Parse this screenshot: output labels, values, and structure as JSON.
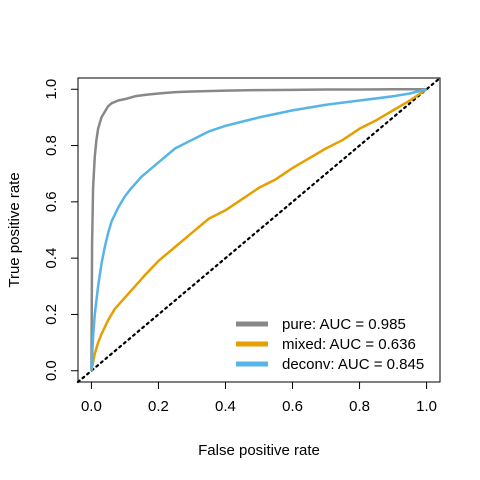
{
  "chart_data": {
    "type": "line",
    "title": "",
    "xlabel": "False positive rate",
    "ylabel": "True positive rate",
    "xlim": [
      -0.04,
      1.04
    ],
    "ylim": [
      -0.04,
      1.04
    ],
    "x_ticks": [
      0.0,
      0.2,
      0.4,
      0.6,
      0.8,
      1.0
    ],
    "x_tick_labels": [
      "0.0",
      "0.2",
      "0.4",
      "0.6",
      "0.8",
      "1.0"
    ],
    "y_ticks": [
      0.0,
      0.2,
      0.4,
      0.6,
      0.8,
      1.0
    ],
    "y_tick_labels": [
      "0.0",
      "0.2",
      "0.4",
      "0.6",
      "0.8",
      "1.0"
    ],
    "grid": false,
    "legend_position": "bottom-right",
    "reference_line": {
      "style": "dotted",
      "color": "#000000",
      "x": [
        0,
        1
      ],
      "y": [
        0,
        1
      ]
    },
    "series": [
      {
        "name": "pure: AUC = 0.985",
        "color": "#888888",
        "x": [
          0,
          0.002,
          0.005,
          0.01,
          0.015,
          0.02,
          0.03,
          0.04,
          0.05,
          0.06,
          0.08,
          0.1,
          0.13,
          0.16,
          0.2,
          0.25,
          0.3,
          0.4,
          0.5,
          0.6,
          0.7,
          0.8,
          0.9,
          1.0
        ],
        "y": [
          0,
          0.45,
          0.65,
          0.76,
          0.82,
          0.86,
          0.9,
          0.92,
          0.94,
          0.95,
          0.96,
          0.965,
          0.975,
          0.98,
          0.985,
          0.99,
          0.992,
          0.995,
          0.997,
          0.998,
          0.999,
          0.999,
          1.0,
          1.0
        ]
      },
      {
        "name": "mixed: AUC = 0.636",
        "color": "#E69F00",
        "x": [
          0,
          0.005,
          0.01,
          0.02,
          0.03,
          0.05,
          0.07,
          0.1,
          0.13,
          0.16,
          0.2,
          0.25,
          0.3,
          0.35,
          0.4,
          0.45,
          0.5,
          0.55,
          0.6,
          0.65,
          0.7,
          0.75,
          0.8,
          0.85,
          0.9,
          0.95,
          1.0
        ],
        "y": [
          0,
          0.03,
          0.06,
          0.1,
          0.13,
          0.18,
          0.22,
          0.26,
          0.3,
          0.34,
          0.39,
          0.44,
          0.49,
          0.54,
          0.57,
          0.61,
          0.65,
          0.68,
          0.72,
          0.755,
          0.79,
          0.82,
          0.86,
          0.89,
          0.925,
          0.96,
          1.0
        ]
      },
      {
        "name": "deconv: AUC = 0.845",
        "color": "#56B4E9",
        "x": [
          0,
          0.005,
          0.01,
          0.02,
          0.03,
          0.04,
          0.05,
          0.06,
          0.08,
          0.1,
          0.12,
          0.15,
          0.18,
          0.2,
          0.25,
          0.3,
          0.35,
          0.4,
          0.45,
          0.5,
          0.6,
          0.7,
          0.8,
          0.9,
          0.95,
          1.0
        ],
        "y": [
          0,
          0.12,
          0.2,
          0.3,
          0.38,
          0.44,
          0.49,
          0.53,
          0.58,
          0.62,
          0.65,
          0.69,
          0.72,
          0.74,
          0.79,
          0.82,
          0.85,
          0.87,
          0.885,
          0.9,
          0.925,
          0.945,
          0.96,
          0.975,
          0.985,
          1.0
        ]
      }
    ]
  }
}
